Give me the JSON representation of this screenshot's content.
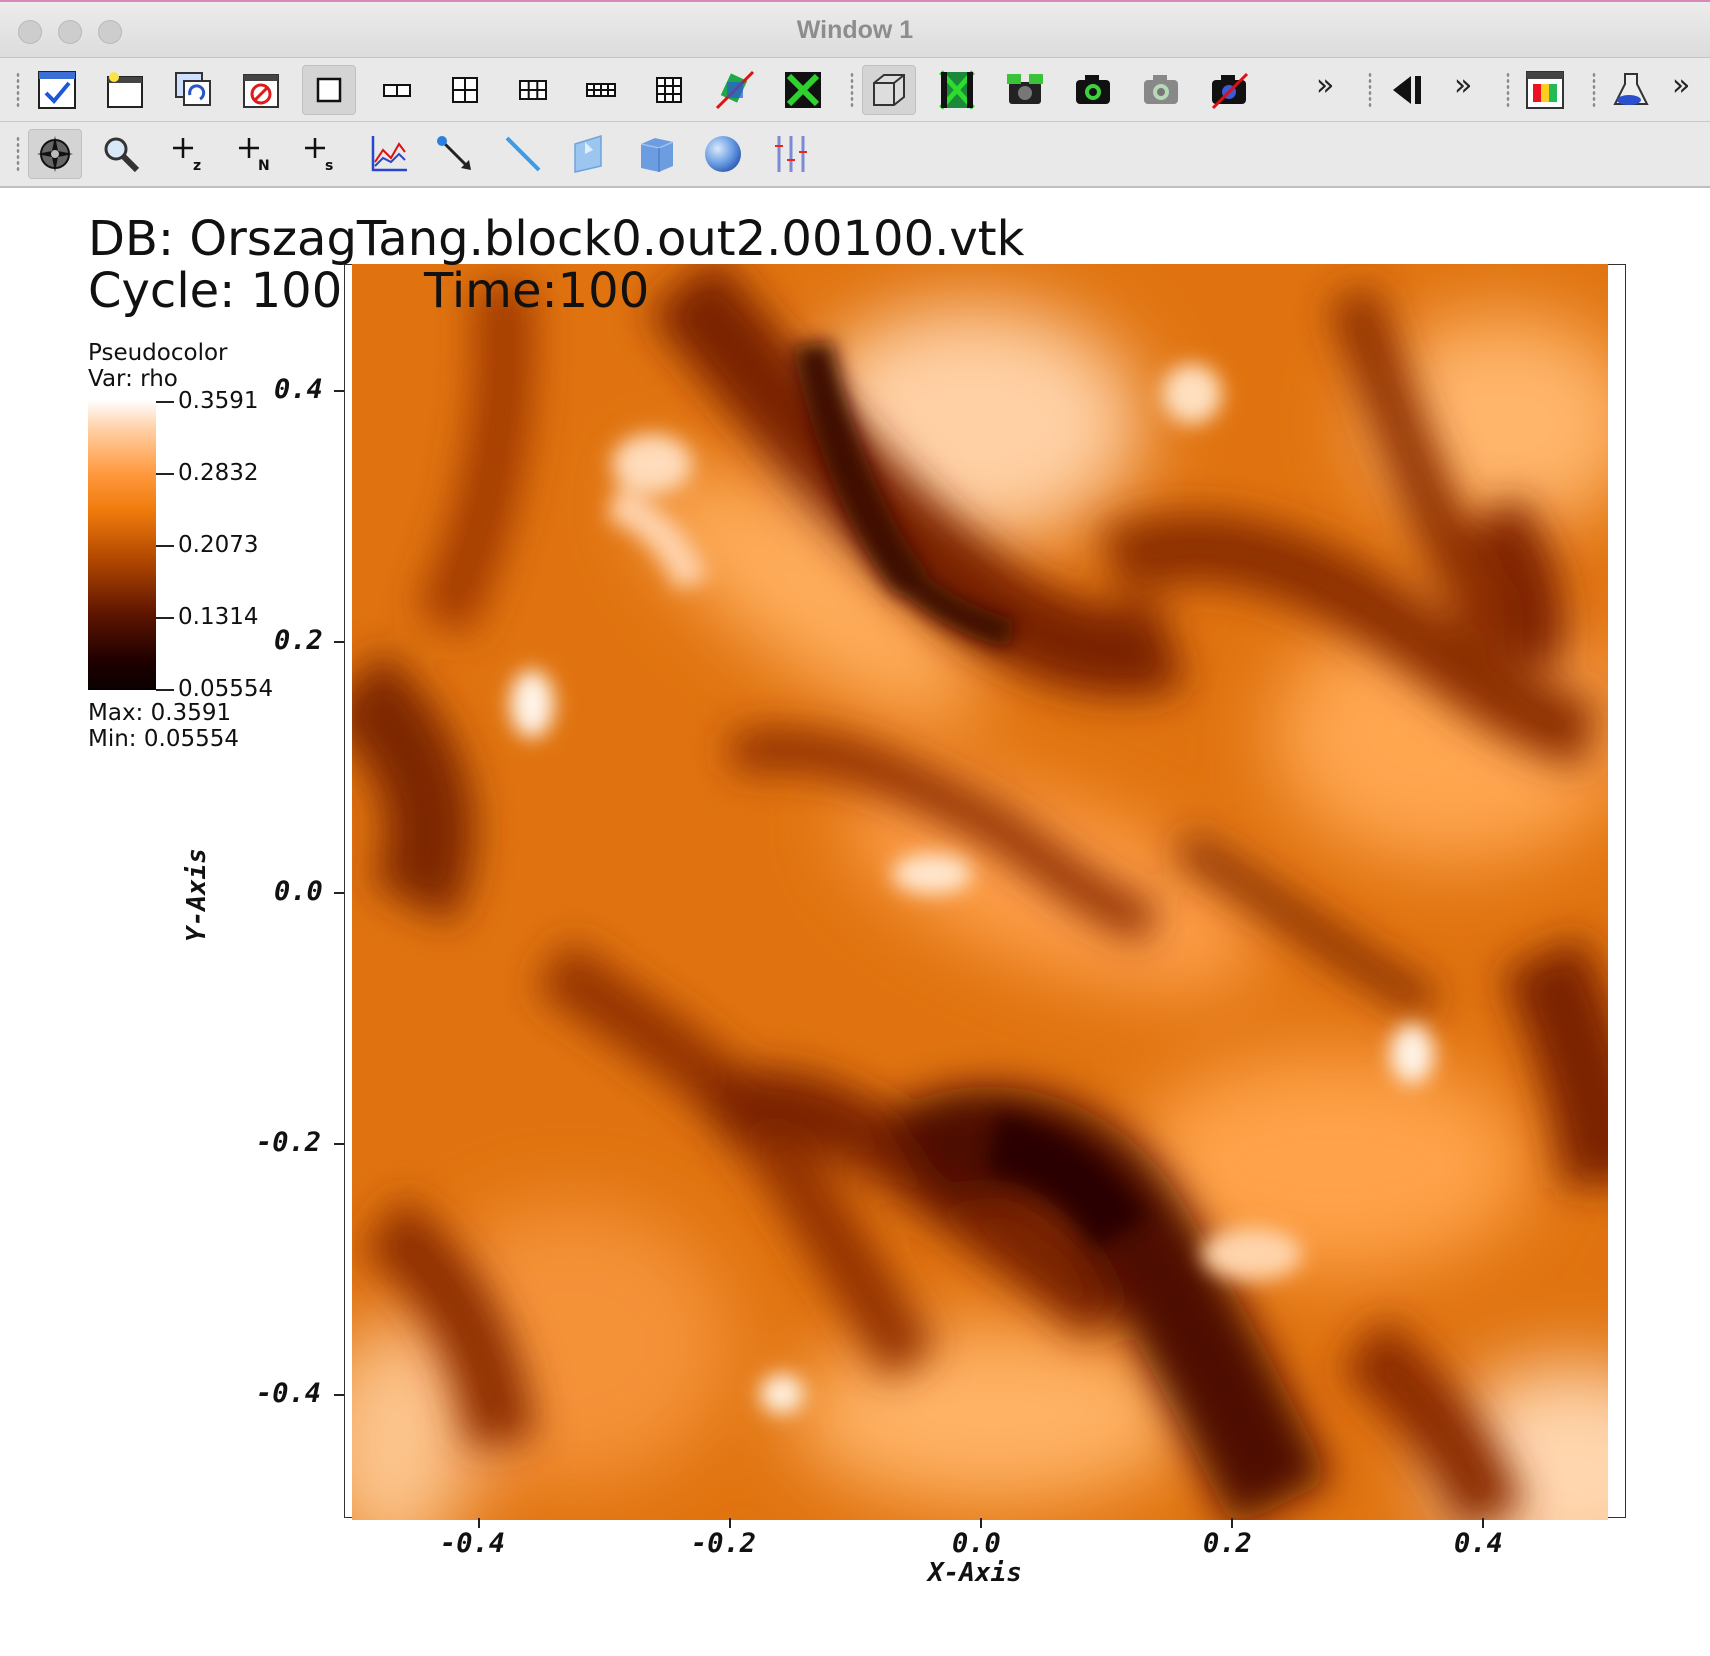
{
  "window": {
    "title": "Window 1"
  },
  "toolbar1": {
    "buttons": [
      "toggle-window-checkbox",
      "new-window",
      "clone-window",
      "delete-window",
      "layout-1x1",
      "layout-1x2",
      "layout-2x2",
      "layout-2x3",
      "layout-2x4",
      "layout-3x3",
      "lock-view",
      "lock-tool",
      "perspective-view",
      "save-image",
      "image-settings",
      "camera",
      "camera-settings",
      "camera-disabled",
      "playback-back",
      "animation-tools",
      "keyframe",
      "lights"
    ]
  },
  "toolbar2": {
    "buttons": [
      "navigate-mode",
      "zoom-mode",
      "zone-pick",
      "node-pick",
      "spreadsheet-pick",
      "lineout",
      "point-tool",
      "line-tool",
      "plane-tool",
      "box-tool",
      "sphere-tool",
      "axis-restrict-tool"
    ]
  },
  "header": {
    "db": "DB: OrszagTang.block0.out2.00100.vtk",
    "cycle": "Cycle: 100",
    "time": "Time:100"
  },
  "legend": {
    "plot_type": "Pseudocolor",
    "variable": "Var: rho",
    "ticks": [
      "0.3591",
      "0.2832",
      "0.2073",
      "0.1314",
      "0.05554"
    ],
    "max": "Max:  0.3591",
    "min": "Min:  0.05554",
    "colormap": [
      "#ffffff",
      "#ffd0a6",
      "#ff9a40",
      "#f07b0c",
      "#b24800",
      "#5c1400",
      "#1f0000",
      "#0a0000"
    ]
  },
  "axes": {
    "x_label": "X-Axis",
    "y_label": "Y-Axis",
    "x_ticks": [
      "-0.4",
      "-0.2",
      "0.0",
      "0.2",
      "0.4"
    ],
    "y_ticks": [
      "0.4",
      "0.2",
      "0.0",
      "-0.2",
      "-0.4"
    ],
    "x_range": [
      -0.5,
      0.5
    ],
    "y_range": [
      -0.5,
      0.5
    ]
  }
}
